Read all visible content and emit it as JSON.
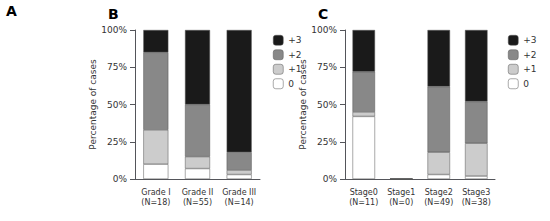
{
  "chart_data": [
    {
      "type": "bar",
      "stacked": true,
      "title": "B",
      "categories": [
        "Grade I\n(N=18)",
        "Grade II\n(N=55)",
        "Grade III\n(N=14)"
      ],
      "series": [
        {
          "name": "0",
          "color": "#ffffff",
          "values": [
            0.1,
            0.07,
            0.03
          ]
        },
        {
          "name": "+1",
          "color": "#cccccc",
          "values": [
            0.23,
            0.08,
            0.03
          ]
        },
        {
          "name": "+2",
          "color": "#888888",
          "values": [
            0.52,
            0.35,
            0.12
          ]
        },
        {
          "name": "+3",
          "color": "#1a1a1a",
          "values": [
            0.15,
            0.5,
            0.82
          ]
        }
      ],
      "ylabel": "Percentage of cases",
      "ylim": [
        0,
        1.0
      ],
      "yticks": [
        {
          "value": 0,
          "label": "0%"
        },
        {
          "value": 0.25,
          "label": "25%"
        },
        {
          "value": 0.5,
          "label": "50%"
        },
        {
          "value": 0.75,
          "label": "75%"
        },
        {
          "value": 1.0,
          "label": "100%"
        }
      ],
      "grid": false,
      "legend": "upper right"
    },
    {
      "type": "bar",
      "stacked": true,
      "title": "C",
      "categories": [
        "Stage0\n(N=11)",
        "Stage1\n(N=0)",
        "Stage2\n(N=49)",
        "Stage3\n(N=38)"
      ],
      "series": [
        {
          "name": "0",
          "color": "#ffffff",
          "values": [
            0.42,
            0.0,
            0.03,
            0.02
          ]
        },
        {
          "name": "+1",
          "color": "#cccccc",
          "values": [
            0.03,
            0.0,
            0.15,
            0.22
          ]
        },
        {
          "name": "+2",
          "color": "#888888",
          "values": [
            0.27,
            0.0,
            0.44,
            0.28
          ]
        },
        {
          "name": "+3",
          "color": "#1a1a1a",
          "values": [
            0.28,
            0.0,
            0.38,
            0.48
          ]
        }
      ],
      "ylabel": "Percentage of cases",
      "ylim": [
        0,
        1.0
      ],
      "yticks": [
        {
          "value": 0,
          "label": "0%"
        },
        {
          "value": 0.25,
          "label": "25%"
        },
        {
          "value": 0.5,
          "label": "50%"
        },
        {
          "value": 0.75,
          "label": "75%"
        },
        {
          "value": 1.0,
          "label": "100%"
        }
      ],
      "grid": false,
      "legend": "upper right"
    }
  ],
  "annotations": [
    "A"
  ]
}
